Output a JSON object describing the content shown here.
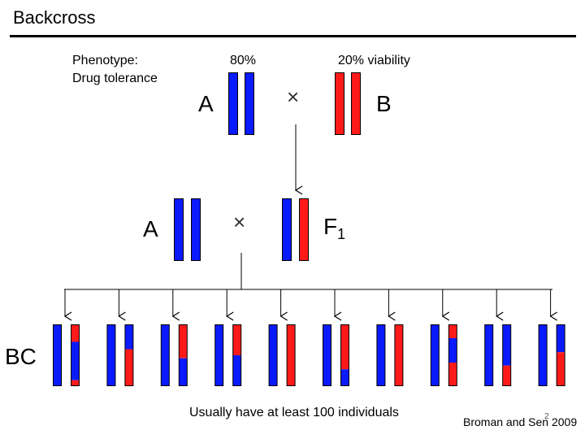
{
  "slide": {
    "title": "Backcross",
    "phenotype_line1": "Phenotype:",
    "phenotype_line2": "Drug tolerance",
    "pct_A": "80%",
    "pct_B": "20% viability",
    "label_A_top": "A",
    "label_B": "B",
    "label_A_mid": "A",
    "label_F1_main": "F",
    "label_F1_sub": "1",
    "label_BC": "BC",
    "cross_symbol": "×",
    "footer_note": "Usually have at least 100 individuals",
    "credit": "Broman and Sen 2009",
    "page_number": "2"
  },
  "colors": {
    "strain_A": "#0a1aff",
    "strain_B": "#ff1a1a",
    "outline": "#000000"
  },
  "backcross_individuals": [
    {
      "chr1": [
        [
          "B",
          0,
          0.28
        ],
        [
          "A",
          0.28,
          0.91
        ],
        [
          "B",
          0.91,
          1.0
        ]
      ],
      "chr2": "A"
    },
    {
      "chr1": [
        [
          "A",
          0,
          0.4
        ],
        [
          "B",
          0.4,
          1.0
        ]
      ],
      "chr2": "A"
    },
    {
      "chr1": [
        [
          "B",
          0,
          0.55
        ],
        [
          "A",
          0.55,
          1.0
        ]
      ],
      "chr2": "A"
    },
    {
      "chr1": [
        [
          "B",
          0,
          0.5
        ],
        [
          "A",
          0.5,
          1.0
        ]
      ],
      "chr2": "A"
    },
    {
      "chr1": [
        [
          "B",
          0,
          1.0
        ]
      ],
      "chr2": "A"
    },
    {
      "chr1": [
        [
          "B",
          0,
          0.73
        ],
        [
          "A",
          0.73,
          1.0
        ]
      ],
      "chr2": "A"
    },
    {
      "chr1": [
        [
          "B",
          0,
          1.0
        ]
      ],
      "chr2": "A"
    },
    {
      "chr1": [
        [
          "B",
          0,
          0.22
        ],
        [
          "A",
          0.22,
          0.62
        ],
        [
          "B",
          0.62,
          1.0
        ]
      ],
      "chr2": "A"
    },
    {
      "chr1": [
        [
          "A",
          0,
          0.67
        ],
        [
          "B",
          0.67,
          1.0
        ]
      ],
      "chr2": "A"
    },
    {
      "chr1": [
        [
          "A",
          0,
          0.45
        ],
        [
          "B",
          0.45,
          1.0
        ]
      ],
      "chr2": "A"
    }
  ]
}
